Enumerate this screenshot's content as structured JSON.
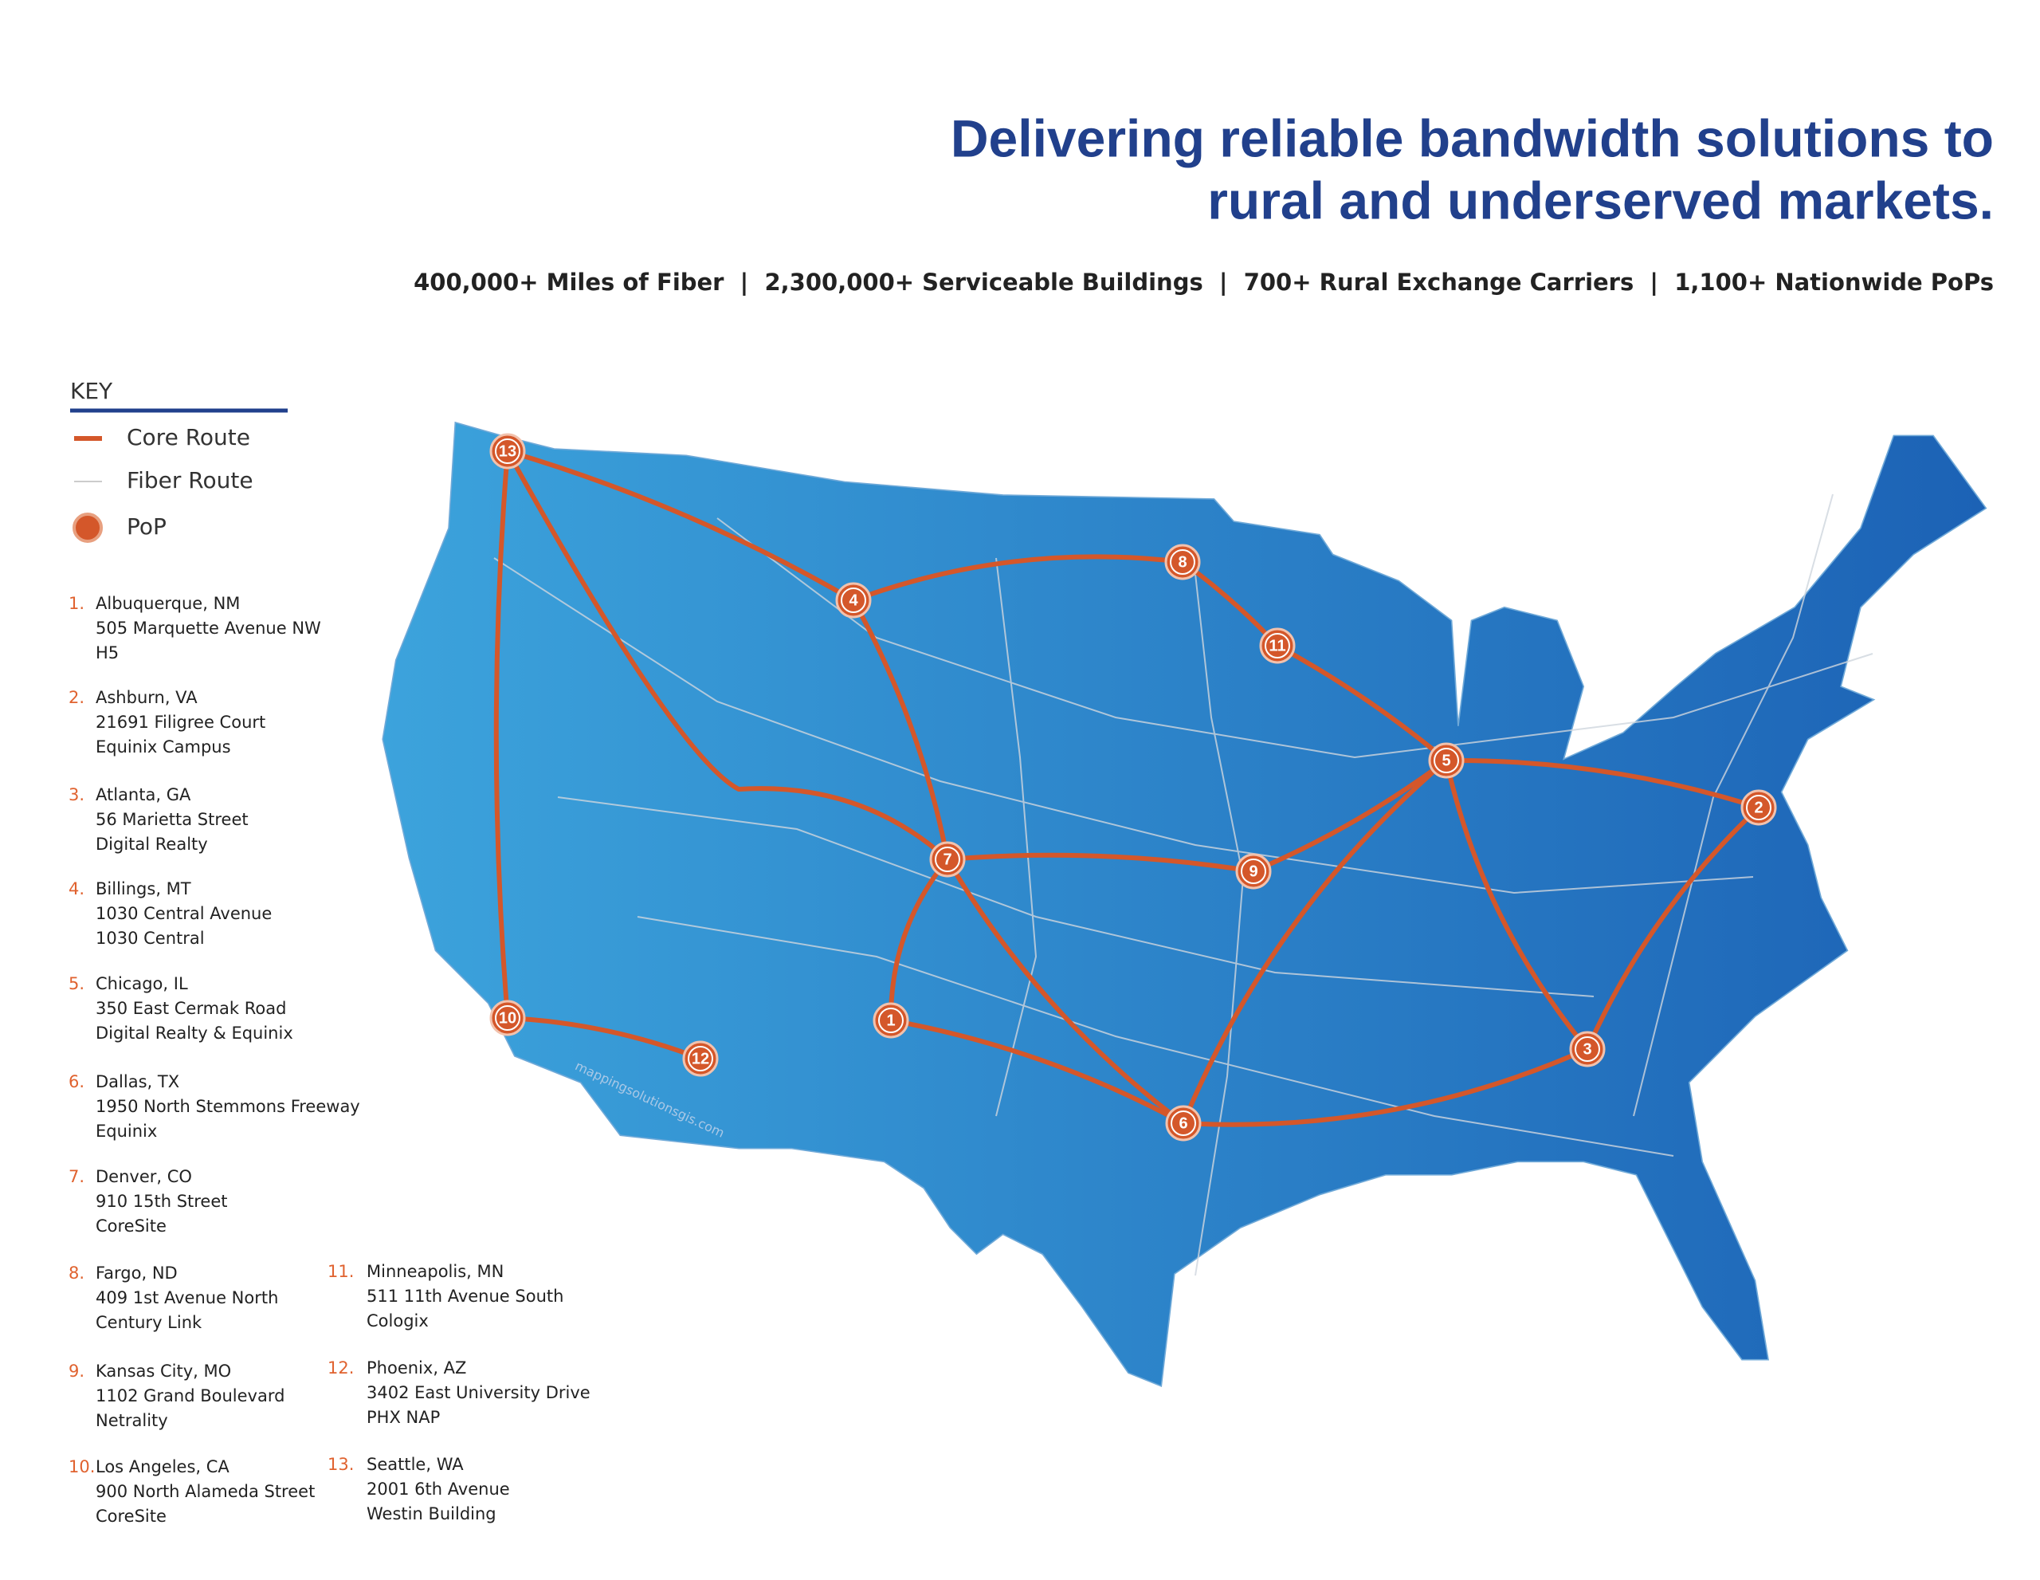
{
  "header": {
    "title": [
      "Delivering reliable bandwidth solutions to",
      "rural and underserved markets."
    ],
    "stats": "400,000+ Miles of Fiber  |  2,300,000+ Serviceable Buildings  |  700+ Rural Exchange Carriers  |  1,100+ Nationwide PoPs"
  },
  "key": {
    "title": "KEY",
    "items": [
      "Core Route",
      "Fiber Route",
      "PoP"
    ]
  },
  "pops": [
    {
      "number": "1.",
      "marker": "1",
      "name": "Albuquerque, NM",
      "lines": [
        "505 Marquette Avenue NW",
        "H5"
      ]
    },
    {
      "number": "2.",
      "marker": "2",
      "name": "Ashburn, VA",
      "lines": [
        "21691 Filigree Court",
        "Equinix Campus"
      ]
    },
    {
      "number": "3.",
      "marker": "3",
      "name": "Atlanta, GA",
      "lines": [
        "56 Marietta Street",
        "Digital Realty"
      ]
    },
    {
      "number": "4.",
      "marker": "4",
      "name": "Billings, MT",
      "lines": [
        "1030 Central Avenue",
        "1030 Central"
      ]
    },
    {
      "number": "5.",
      "marker": "5",
      "name": "Chicago, IL",
      "lines": [
        "350 East Cermak Road",
        "Digital Realty & Equinix"
      ]
    },
    {
      "number": "6.",
      "marker": "6",
      "name": "Dallas, TX",
      "lines": [
        "1950 North Stemmons Freeway",
        "Equinix"
      ]
    },
    {
      "number": "7.",
      "marker": "7",
      "name": "Denver, CO",
      "lines": [
        "910 15th Street",
        "CoreSite"
      ]
    },
    {
      "number": "8.",
      "marker": "8",
      "name": "Fargo, ND",
      "lines": [
        "409 1st Avenue North",
        "Century Link"
      ]
    },
    {
      "number": "9.",
      "marker": "9",
      "name": "Kansas City, MO",
      "lines": [
        "1102 Grand Boulevard",
        "Netrality"
      ]
    },
    {
      "number": "10.",
      "marker": "10",
      "name": "Los Angeles, CA",
      "lines": [
        "900 North Alameda Street",
        "CoreSite"
      ]
    },
    {
      "number": "11.",
      "marker": "11",
      "name": "Minneapolis, MN",
      "lines": [
        "511 11th Avenue South",
        "Cologix"
      ]
    },
    {
      "number": "12.",
      "marker": "12",
      "name": "Phoenix, AZ",
      "lines": [
        "3402 East University Drive",
        "PHX NAP"
      ]
    },
    {
      "number": "13.",
      "marker": "13",
      "name": "Seattle, WA",
      "lines": [
        "2001 6th Avenue",
        "Westin Building"
      ]
    }
  ],
  "watermark": "mappingsolutionsgis.com"
}
